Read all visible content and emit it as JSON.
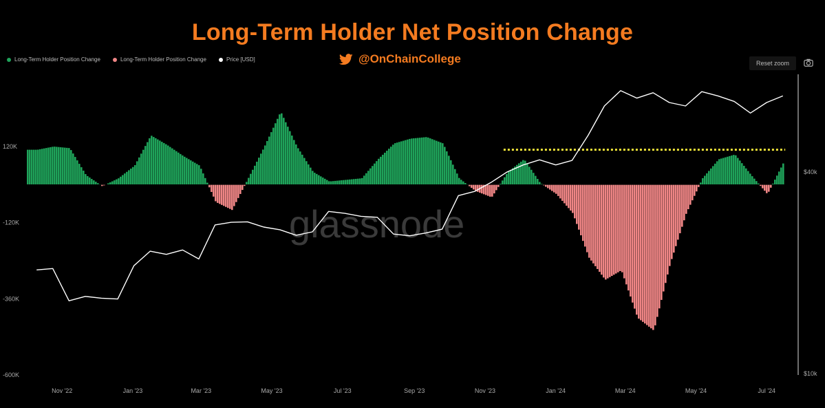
{
  "header": {
    "title": "Long-Term Holder Net Position Change",
    "handle": "@OnChainCollege",
    "reset_zoom": "Reset zoom",
    "watermark": "glassnode"
  },
  "colors": {
    "positive": "#1fa35a",
    "negative": "#f08686",
    "price": "#ffffff",
    "accent": "#f47b20",
    "highlight": "#f2e63a"
  },
  "legend": [
    {
      "label": "Long-Term Holder Position Change",
      "color": "#1fa35a"
    },
    {
      "label": "Long-Term Holder Position Change",
      "color": "#f08686"
    },
    {
      "label": "Price [USD]",
      "color": "#ffffff"
    }
  ],
  "chart_data": {
    "type": "bar",
    "x_tick_labels": [
      "Nov '22",
      "Jan '23",
      "Mar '23",
      "May '23",
      "Jul '23",
      "Sep '23",
      "Nov '23",
      "Jan '24",
      "Mar '24",
      "May '24",
      "Jul '24"
    ],
    "y_left": {
      "ticks": [
        120000,
        -120000,
        -360000,
        -600000
      ],
      "tick_labels": [
        "120K",
        "-120K",
        "-360K",
        "-600K"
      ],
      "range": [
        -600000,
        200000
      ]
    },
    "y_right": {
      "tick_labels": [
        "$40k",
        "$10k"
      ],
      "scale": "log"
    },
    "series": [
      {
        "kind": "bar",
        "unit": "BTC",
        "dates": [
          "2022-10-24",
          "2022-11-07",
          "2022-11-21",
          "2022-12-05",
          "2022-12-19",
          "2023-01-02",
          "2023-01-16",
          "2023-01-30",
          "2023-02-13",
          "2023-02-27",
          "2023-03-13",
          "2023-03-27",
          "2023-04-10",
          "2023-04-24",
          "2023-05-08",
          "2023-05-22",
          "2023-06-05",
          "2023-06-19",
          "2023-07-03",
          "2023-07-17",
          "2023-07-31",
          "2023-08-14",
          "2023-08-28",
          "2023-09-11",
          "2023-09-25",
          "2023-10-09",
          "2023-10-23",
          "2023-11-06",
          "2023-11-20",
          "2023-12-04",
          "2023-12-18",
          "2024-01-01",
          "2024-01-15",
          "2024-01-29",
          "2024-02-12",
          "2024-02-26",
          "2024-03-11",
          "2024-03-25",
          "2024-04-08",
          "2024-04-22",
          "2024-05-06",
          "2024-05-20",
          "2024-06-03",
          "2024-06-17",
          "2024-07-01",
          "2024-07-15",
          "2024-07-29"
        ],
        "values": [
          110000,
          120000,
          115000,
          30000,
          -5000,
          20000,
          60000,
          155000,
          125000,
          90000,
          60000,
          -55000,
          -80000,
          20000,
          120000,
          230000,
          120000,
          40000,
          10000,
          15000,
          20000,
          80000,
          130000,
          145000,
          150000,
          130000,
          20000,
          -20000,
          -40000,
          40000,
          80000,
          5000,
          -30000,
          -90000,
          -230000,
          -300000,
          -270000,
          -420000,
          -460000,
          -250000,
          -90000,
          20000,
          80000,
          95000,
          30000,
          -30000,
          70000
        ]
      },
      {
        "kind": "line",
        "unit": "USD",
        "dates": [
          "2022-10-24",
          "2022-11-07",
          "2022-11-21",
          "2022-12-05",
          "2022-12-19",
          "2023-01-02",
          "2023-01-16",
          "2023-01-30",
          "2023-02-13",
          "2023-02-27",
          "2023-03-13",
          "2023-03-27",
          "2023-04-10",
          "2023-04-24",
          "2023-05-08",
          "2023-05-22",
          "2023-06-05",
          "2023-06-19",
          "2023-07-03",
          "2023-07-17",
          "2023-07-31",
          "2023-08-14",
          "2023-08-28",
          "2023-09-11",
          "2023-09-25",
          "2023-10-09",
          "2023-10-23",
          "2023-11-06",
          "2023-11-20",
          "2023-12-04",
          "2023-12-18",
          "2024-01-01",
          "2024-01-15",
          "2024-01-29",
          "2024-02-12",
          "2024-02-26",
          "2024-03-11",
          "2024-03-25",
          "2024-04-08",
          "2024-04-22",
          "2024-05-06",
          "2024-05-20",
          "2024-06-03",
          "2024-06-17",
          "2024-07-01",
          "2024-07-15",
          "2024-07-29"
        ],
        "values": [
          20400,
          20600,
          16500,
          17000,
          16800,
          16700,
          21000,
          23200,
          22700,
          23400,
          22000,
          27800,
          28300,
          28400,
          27400,
          26900,
          25900,
          26500,
          30500,
          30100,
          29500,
          29300,
          26100,
          25800,
          26300,
          27000,
          34000,
          35000,
          37200,
          40000,
          42000,
          43500,
          42000,
          43300,
          51500,
          63000,
          70000,
          66500,
          69000,
          64500,
          63000,
          69500,
          67500,
          65000,
          60000,
          64500,
          67500
        ]
      }
    ],
    "annotations": [
      {
        "kind": "horizontal_dotted_line",
        "color": "#f2e63a",
        "y": 110000,
        "from": "2023-12-01",
        "to": "2024-07-31"
      }
    ]
  }
}
